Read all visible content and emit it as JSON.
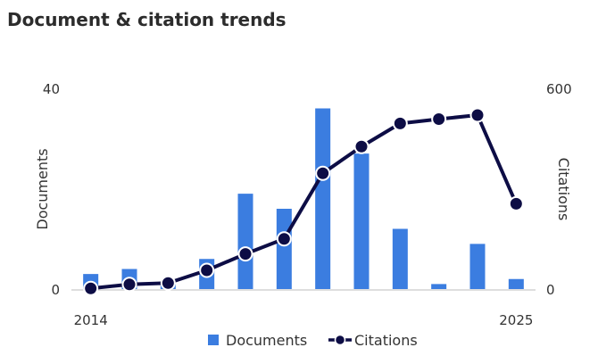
{
  "header": {
    "title": "Document & citation trends"
  },
  "colors": {
    "bars": "#3b7de0",
    "line": "#0d0d45",
    "axis": "#bdbdbd"
  },
  "chart_data": {
    "type": "bar+line",
    "title": "Document & citation trends",
    "x": [
      2014,
      2015,
      2016,
      2017,
      2018,
      2019,
      2020,
      2021,
      2022,
      2023,
      2024,
      2025
    ],
    "x_tick_labels": [
      "2014",
      "2025"
    ],
    "series": [
      {
        "name": "Documents",
        "type": "bar",
        "axis": "left",
        "values": [
          3,
          4,
          1,
          6,
          19,
          16,
          36,
          27,
          12,
          1,
          9,
          2
        ]
      },
      {
        "name": "Citations",
        "type": "line",
        "axis": "right",
        "values": [
          2,
          14,
          18,
          56,
          105,
          150,
          346,
          426,
          495,
          508,
          520,
          255
        ]
      }
    ],
    "y_left": {
      "label": "Documents",
      "range": [
        0,
        40
      ],
      "ticks": [
        "0",
        "40"
      ]
    },
    "y_right": {
      "label": "Citations",
      "range": [
        0,
        600
      ],
      "ticks": [
        "0",
        "600"
      ]
    },
    "legend": {
      "position": "bottom",
      "items": [
        "Documents",
        "Citations"
      ]
    },
    "grid": false
  }
}
